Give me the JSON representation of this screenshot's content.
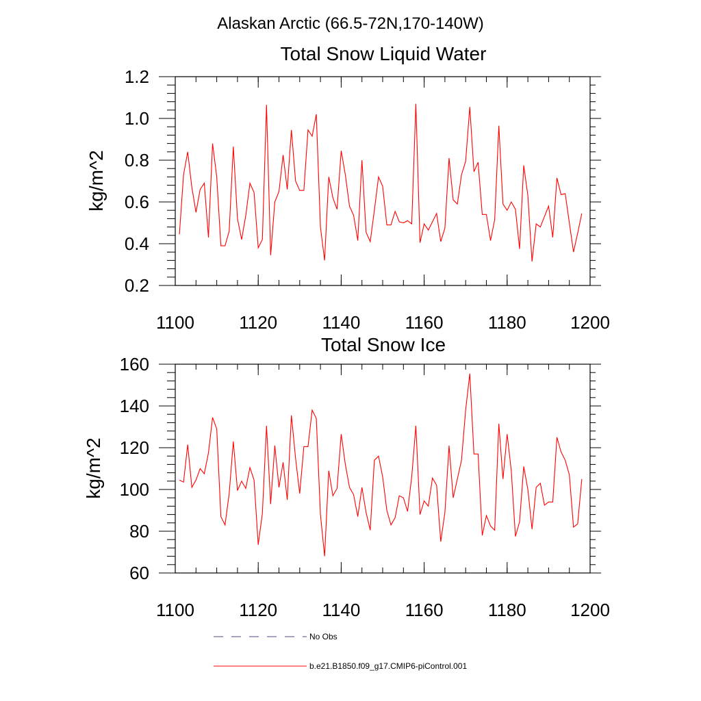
{
  "figure": {
    "title": "Alaskan Arctic (66.5-72N,170-140W)"
  },
  "colors": {
    "model_series": "#ff0000",
    "obs_series": "#4a4a8c",
    "axes": "#000000"
  },
  "chart_data": [
    {
      "type": "line",
      "title": "Total Snow Liquid Water",
      "xlabel": "",
      "ylabel": "kg/m^2",
      "xlim": [
        1100,
        1200
      ],
      "ylim": [
        0.2,
        1.2
      ],
      "xticks": [
        "1100",
        "1120",
        "1140",
        "1160",
        "1180",
        "1200"
      ],
      "yticks": [
        "0.2",
        "0.4",
        "0.6",
        "0.8",
        "1.0",
        "1.2"
      ],
      "grid": false,
      "series": [
        {
          "name": "b.e21.B1850.f09_g17.CMIP6-piControl.001",
          "x_start": 1101,
          "x_step": 1,
          "values": [
            0.445,
            0.73,
            0.84,
            0.67,
            0.55,
            0.66,
            0.69,
            0.43,
            0.88,
            0.72,
            0.39,
            0.39,
            0.46,
            0.865,
            0.52,
            0.42,
            0.535,
            0.69,
            0.645,
            0.38,
            0.42,
            1.065,
            0.345,
            0.6,
            0.65,
            0.825,
            0.66,
            0.945,
            0.7,
            0.655,
            0.655,
            0.945,
            0.915,
            1.02,
            0.48,
            0.32,
            0.72,
            0.62,
            0.565,
            0.845,
            0.73,
            0.58,
            0.535,
            0.415,
            0.8,
            0.455,
            0.41,
            0.56,
            0.72,
            0.675,
            0.49,
            0.49,
            0.555,
            0.505,
            0.5,
            0.51,
            0.495,
            1.07,
            0.405,
            0.495,
            0.465,
            0.505,
            0.545,
            0.41,
            0.475,
            0.81,
            0.61,
            0.59,
            0.73,
            0.795,
            1.055,
            0.745,
            0.79,
            0.54,
            0.54,
            0.415,
            0.515,
            0.965,
            0.59,
            0.56,
            0.6,
            0.565,
            0.375,
            0.775,
            0.63,
            0.315,
            0.495,
            0.48,
            0.53,
            0.58,
            0.43,
            0.715,
            0.635,
            0.64,
            0.5,
            0.36,
            0.45,
            0.545
          ]
        }
      ]
    },
    {
      "type": "line",
      "title": "Total Snow Ice",
      "xlabel": "",
      "ylabel": "kg/m^2",
      "xlim": [
        1100,
        1200
      ],
      "ylim": [
        60,
        160
      ],
      "xticks": [
        "1100",
        "1120",
        "1140",
        "1160",
        "1180",
        "1200"
      ],
      "yticks": [
        "60",
        "80",
        "100",
        "120",
        "140",
        "160"
      ],
      "grid": false,
      "series": [
        {
          "name": "b.e21.B1850.f09_g17.CMIP6-piControl.001",
          "x_start": 1101,
          "x_step": 1,
          "values": [
            104.5,
            103.5,
            121.5,
            101,
            104.5,
            110,
            107.5,
            117.5,
            134.5,
            129,
            87,
            83,
            98,
            123,
            99.5,
            104,
            100.5,
            110.5,
            104.5,
            73.5,
            88.5,
            130.5,
            93,
            121,
            101,
            113,
            95,
            135.5,
            115,
            98,
            120.5,
            120.5,
            138,
            134,
            88,
            68,
            109,
            97,
            100.5,
            126.5,
            112,
            101,
            97.5,
            87,
            101,
            89,
            80.5,
            114,
            116,
            106,
            90,
            83,
            86.5,
            97,
            96,
            89.5,
            106,
            130.5,
            88,
            94.5,
            92,
            105.5,
            102,
            75,
            89,
            121,
            96,
            105,
            114,
            138,
            155.5,
            117,
            117,
            78,
            87.5,
            82.5,
            80.5,
            131.5,
            105,
            126.5,
            109,
            77.5,
            84.5,
            111,
            100,
            81,
            101,
            103,
            92.5,
            94,
            94,
            125,
            118,
            114,
            107,
            82,
            83.5,
            105
          ]
        }
      ]
    }
  ],
  "legend": {
    "placement": "bottom",
    "items": [
      {
        "label": "No Obs",
        "style": "dashed"
      },
      {
        "label": "b.e21.B1850.f09_g17.CMIP6-piControl.001",
        "style": "solid"
      }
    ]
  }
}
